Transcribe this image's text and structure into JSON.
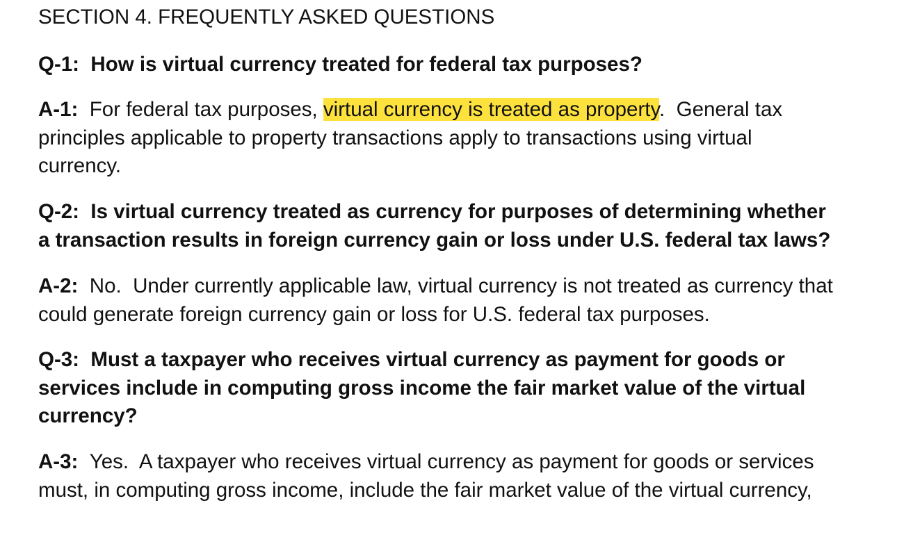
{
  "section_heading": "SECTION 4. FREQUENTLY ASKED QUESTIONS",
  "faq": [
    {
      "q_label": "Q-1:",
      "q_text": "How is virtual currency treated for federal tax purposes?",
      "a_label": "A-1:",
      "a_pre": "For federal tax purposes,",
      "a_highlight": "virtual currency is treated as property",
      "a_post": ".  General tax",
      "a_line2": "principles applicable to property transactions apply to transactions using virtual",
      "a_line3": "currency."
    },
    {
      "q_label": "Q-2:",
      "q_line1": "Is virtual currency treated as currency for purposes of determining whether",
      "q_line2": "a transaction results in foreign currency gain or loss under U.S. federal tax laws?",
      "a_label": "A-2:",
      "a_line1": "No.  Under currently applicable law, virtual currency is not treated as currency that",
      "a_line2": "could generate foreign currency gain or loss for U.S. federal tax purposes."
    },
    {
      "q_label": "Q-3:",
      "q_line1": "Must a taxpayer who receives virtual currency as payment for goods or",
      "q_line2": "services include in computing gross income the fair market value of the virtual",
      "q_line3": "currency?",
      "a_label": "A-3:",
      "a_line1": "Yes.  A taxpayer who receives virtual currency as payment for goods or services",
      "a_line2": "must, in computing gross income, include the fair market value of the virtual currency,"
    }
  ],
  "colors": {
    "highlight": "#fde23e",
    "text": "#111111",
    "background": "#ffffff"
  }
}
